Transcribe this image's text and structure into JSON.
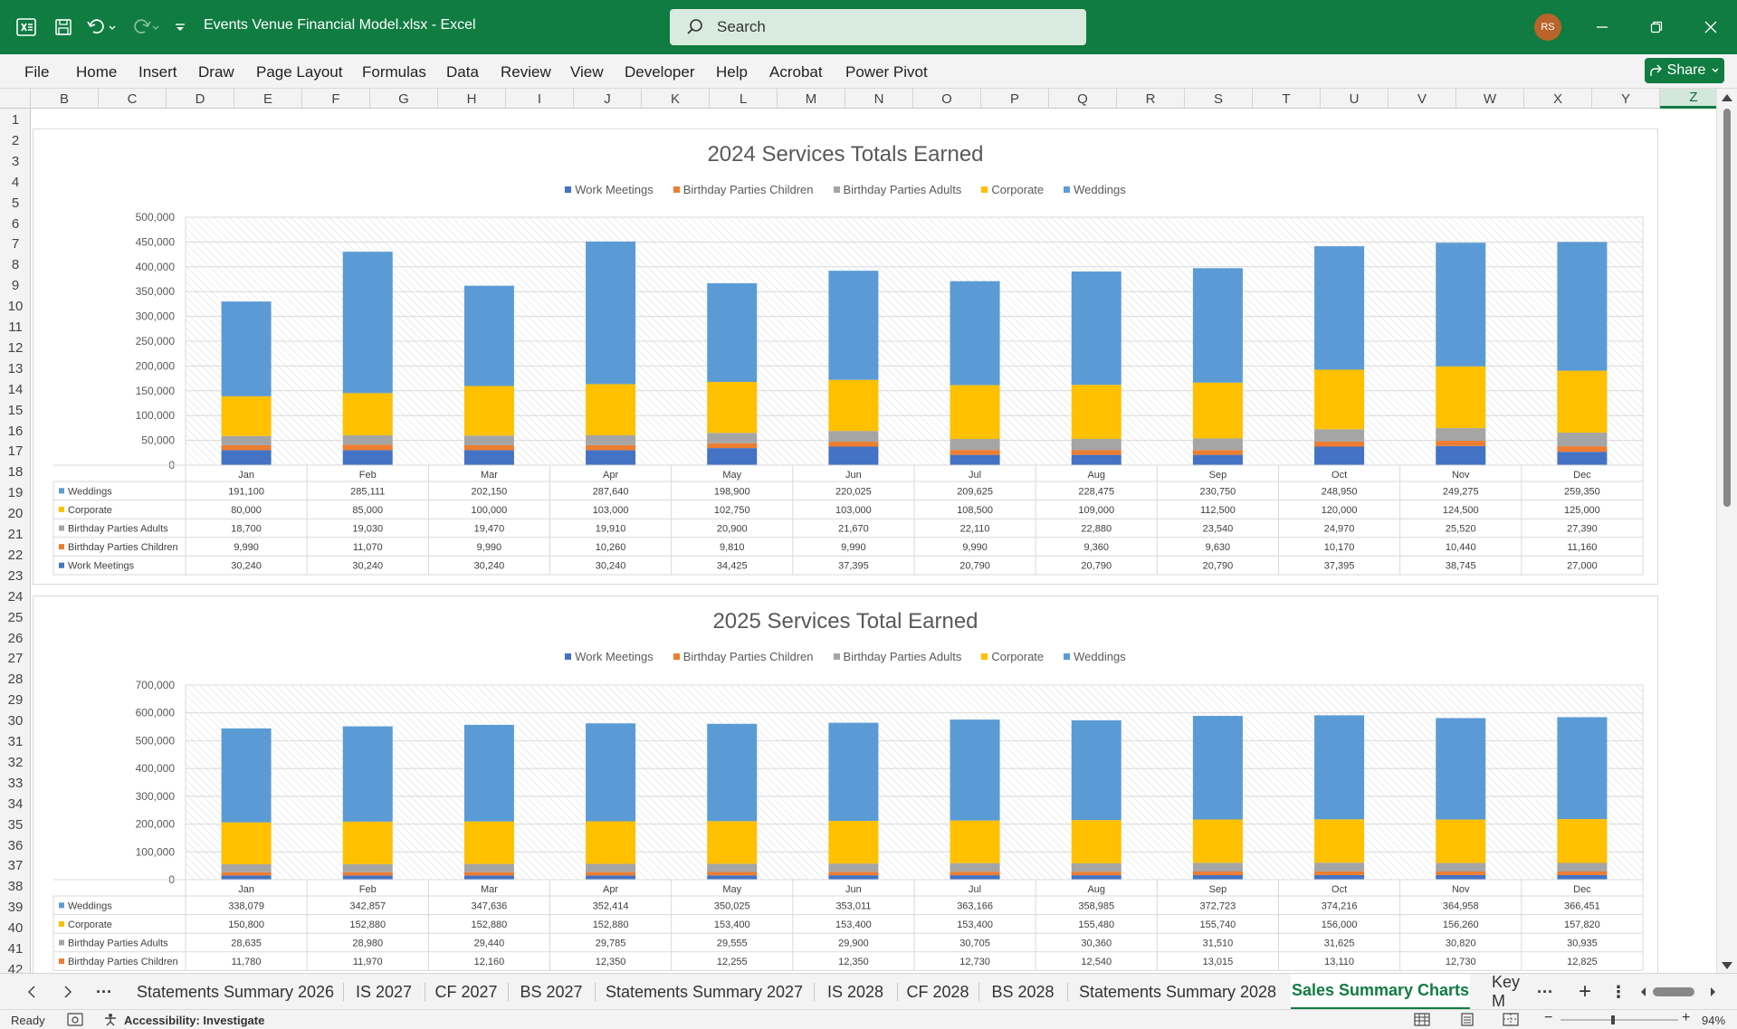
{
  "app": {
    "title": "Events Venue Financial Model.xlsx  -  Excel",
    "search_placeholder": "Search",
    "user_initials": "RS"
  },
  "menu": [
    "File",
    "Home",
    "Insert",
    "Draw",
    "Page Layout",
    "Formulas",
    "Data",
    "Review",
    "View",
    "Developer",
    "Help",
    "Acrobat",
    "Power Pivot"
  ],
  "share_label": "Share",
  "columns": [
    "B",
    "C",
    "D",
    "E",
    "F",
    "G",
    "H",
    "I",
    "J",
    "K",
    "L",
    "M",
    "N",
    "O",
    "P",
    "Q",
    "R",
    "S",
    "T",
    "U",
    "V",
    "W",
    "X",
    "Y",
    "Z"
  ],
  "selected_column": "Z",
  "rows": [
    "1",
    "2",
    "3",
    "4",
    "5",
    "6",
    "7",
    "8",
    "9",
    "10",
    "11",
    "12",
    "13",
    "14",
    "15",
    "16",
    "17",
    "18",
    "19",
    "20",
    "21",
    "22",
    "23",
    "24",
    "25",
    "26",
    "27",
    "28",
    "29",
    "30",
    "31",
    "32",
    "33",
    "34",
    "35",
    "36",
    "37",
    "38",
    "39",
    "40",
    "41",
    "42"
  ],
  "colors": {
    "Work Meetings": "#4472c4",
    "Birthday Parties Children": "#ed7d31",
    "Birthday Parties Adults": "#a5a5a5",
    "Corporate": "#ffc000",
    "Weddings": "#5b9bd5",
    "excel_green": "#107c41"
  },
  "chart_data": [
    {
      "type": "bar",
      "stacked": true,
      "title": "2024 Services Totals Earned",
      "legend_position": "top",
      "categories": [
        "Jan",
        "Feb",
        "Mar",
        "Apr",
        "May",
        "Jun",
        "Jul",
        "Aug",
        "Sep",
        "Oct",
        "Nov",
        "Dec"
      ],
      "ylim": [
        0,
        500000
      ],
      "yticks": [
        "500,000",
        "450,000",
        "400,000",
        "350,000",
        "300,000",
        "250,000",
        "200,000",
        "150,000",
        "100,000",
        "50,000",
        "0"
      ],
      "series": [
        {
          "name": "Work Meetings",
          "values": [
            30240,
            30240,
            30240,
            30240,
            34425,
            37395,
            20790,
            20790,
            20790,
            37395,
            38745,
            27000
          ],
          "labels": [
            "30,240",
            "30,240",
            "30,240",
            "30,240",
            "34,425",
            "37,395",
            "20,790",
            "20,790",
            "20,790",
            "37,395",
            "38,745",
            "27,000"
          ]
        },
        {
          "name": "Birthday Parties Children",
          "values": [
            9990,
            11070,
            9990,
            10260,
            9810,
            9990,
            9990,
            9360,
            9630,
            10170,
            10440,
            11160
          ],
          "labels": [
            "9,990",
            "11,070",
            "9,990",
            "10,260",
            "9,810",
            "9,990",
            "9,990",
            "9,360",
            "9,630",
            "10,170",
            "10,440",
            "11,160"
          ]
        },
        {
          "name": "Birthday Parties Adults",
          "values": [
            18700,
            19030,
            19470,
            19910,
            20900,
            21670,
            22110,
            22880,
            23540,
            24970,
            25520,
            27390
          ],
          "labels": [
            "18,700",
            "19,030",
            "19,470",
            "19,910",
            "20,900",
            "21,670",
            "22,110",
            "22,880",
            "23,540",
            "24,970",
            "25,520",
            "27,390"
          ]
        },
        {
          "name": "Corporate",
          "values": [
            80000,
            85000,
            100000,
            103000,
            102750,
            103000,
            108500,
            109000,
            112500,
            120000,
            124500,
            125000
          ],
          "labels": [
            "80,000",
            "85,000",
            "100,000",
            "103,000",
            "102,750",
            "103,000",
            "108,500",
            "109,000",
            "112,500",
            "120,000",
            "124,500",
            "125,000"
          ]
        },
        {
          "name": "Weddings",
          "values": [
            191100,
            285111,
            202150,
            287640,
            198900,
            220025,
            209625,
            228475,
            230750,
            248950,
            249275,
            259350
          ],
          "labels": [
            "191,100",
            "285,111",
            "202,150",
            "287,640",
            "198,900",
            "220,025",
            "209,625",
            "228,475",
            "230,750",
            "248,950",
            "249,275",
            "259,350"
          ]
        }
      ]
    },
    {
      "type": "bar",
      "stacked": true,
      "title": "2025 Services Total Earned",
      "legend_position": "top",
      "categories": [
        "Jan",
        "Feb",
        "Mar",
        "Apr",
        "May",
        "Jun",
        "Jul",
        "Aug",
        "Sep",
        "Oct",
        "Nov",
        "Dec"
      ],
      "ylim": [
        0,
        700000
      ],
      "yticks": [
        "700,000",
        "600,000",
        "500,000",
        "400,000",
        "300,000",
        "200,000",
        "100,000",
        "0"
      ],
      "series": [
        {
          "name": "Work Meetings",
          "values": [
            15000,
            15000,
            15000,
            15000,
            15500,
            15800,
            16000,
            16000,
            16200,
            16400,
            16500,
            16500
          ],
          "labels": null
        },
        {
          "name": "Birthday Parties Children",
          "values": [
            11780,
            11970,
            12160,
            12350,
            12255,
            12350,
            12730,
            12540,
            13015,
            13110,
            12730,
            12825
          ],
          "labels": [
            "11,780",
            "11,970",
            "12,160",
            "12,350",
            "12,255",
            "12,350",
            "12,730",
            "12,540",
            "13,015",
            "13,110",
            "12,730",
            "12,825"
          ]
        },
        {
          "name": "Birthday Parties Adults",
          "values": [
            28635,
            28980,
            29440,
            29785,
            29555,
            29900,
            30705,
            30360,
            31510,
            31625,
            30820,
            30935
          ],
          "labels": [
            "28,635",
            "28,980",
            "29,440",
            "29,785",
            "29,555",
            "29,900",
            "30,705",
            "30,360",
            "31,510",
            "31,625",
            "30,820",
            "30,935"
          ]
        },
        {
          "name": "Corporate",
          "values": [
            150800,
            152880,
            152880,
            152880,
            153400,
            153400,
            153400,
            155480,
            155740,
            156000,
            156260,
            157820
          ],
          "labels": [
            "150,800",
            "152,880",
            "152,880",
            "152,880",
            "153,400",
            "153,400",
            "153,400",
            "155,480",
            "155,740",
            "156,000",
            "156,260",
            "157,820"
          ]
        },
        {
          "name": "Weddings",
          "values": [
            338079,
            342857,
            347636,
            352414,
            350025,
            353011,
            363166,
            358985,
            372723,
            374216,
            364958,
            366451
          ],
          "labels": [
            "338,079",
            "342,857",
            "347,636",
            "352,414",
            "350,025",
            "353,011",
            "363,166",
            "358,985",
            "372,723",
            "374,216",
            "364,958",
            "366,451"
          ]
        }
      ]
    }
  ],
  "sheet_tabs": [
    "Statements Summary 2026",
    "IS 2027",
    "CF 2027",
    "BS 2027",
    "Statements Summary 2027",
    "IS 2028",
    "CF 2028",
    "BS 2028",
    "Statements Summary 2028",
    "Sales Summary Charts",
    "Key M"
  ],
  "active_tab": "Sales Summary Charts",
  "status": {
    "ready": "Ready",
    "accessibility": "Accessibility: Investigate",
    "zoom": "94%"
  }
}
